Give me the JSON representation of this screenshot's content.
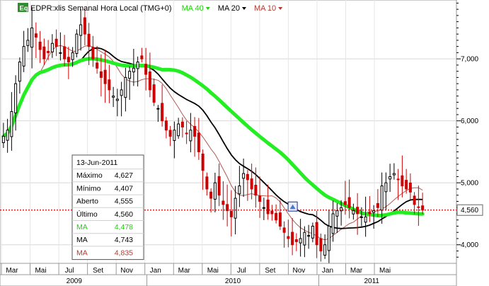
{
  "header": {
    "badge": "Eq",
    "title": "EDPR:xlis Semanal Hora Local (TMG+0)",
    "indicators": [
      {
        "label": "MA 40",
        "color": "#22d10f"
      },
      {
        "label": "MA 20",
        "color": "#000000"
      },
      {
        "label": "MA 10",
        "color": "#b03a2e"
      }
    ]
  },
  "colors": {
    "up": "#000000",
    "down": "#cc0000",
    "ma40": "#22ee22",
    "ma20": "#000000",
    "ma10": "#b05a52",
    "last_line": "#cc0000"
  },
  "info_box": {
    "date": "13-Jun-2011",
    "rows": [
      {
        "label": "Máximo",
        "value": "4,627",
        "color": "#000000"
      },
      {
        "label": "Mínimo",
        "value": "4,407",
        "color": "#000000"
      },
      {
        "label": "Aberto",
        "value": "4,555",
        "color": "#000000"
      },
      {
        "label": "Último",
        "value": "4,560",
        "color": "#000000"
      },
      {
        "label": "MA",
        "value": "4,478",
        "color": "#22d10f"
      },
      {
        "label": "MA",
        "value": "4,743",
        "color": "#000000"
      },
      {
        "label": "MA",
        "value": "4,835",
        "color": "#b03a2e"
      }
    ]
  },
  "chart_data": {
    "type": "candlestick",
    "title": "EDPR:xlis Semanal Hora Local (TMG+0)",
    "y_axis": {
      "min": 3.7,
      "max": 7.95,
      "ticks": [
        4.0,
        5.0,
        6.0,
        7.0
      ],
      "tick_labels": [
        "4,000",
        "5,000",
        "6,000",
        "7,000"
      ],
      "position": "right"
    },
    "last_value": 4.56,
    "last_value_label": "4,560",
    "x_axis": {
      "months": [
        "Mar",
        "Mai",
        "Jul",
        "Set",
        "Nov",
        "Jan",
        "Mar",
        "Mai",
        "Jul",
        "Set",
        "Nov",
        "Jan",
        "Mar",
        "Mai"
      ],
      "years": [
        {
          "label": "2009",
          "start_week": 0,
          "end_week": 44
        },
        {
          "label": "2010",
          "start_week": 44,
          "end_week": 96
        },
        {
          "label": "2011",
          "start_week": 96,
          "end_week": 128
        }
      ]
    },
    "close": [
      5.75,
      5.85,
      6.15,
      6.6,
      6.95,
      7.2,
      7.3,
      7.5,
      7.35,
      7.15,
      7.0,
      7.1,
      7.25,
      7.2,
      7.1,
      7.0,
      6.95,
      7.1,
      7.4,
      7.55,
      7.4,
      7.2,
      7.0,
      6.85,
      6.7,
      6.6,
      6.5,
      6.4,
      6.35,
      6.5,
      6.7,
      6.8,
      6.85,
      6.95,
      7.0,
      6.75,
      6.5,
      6.3,
      6.2,
      6.0,
      5.85,
      5.75,
      5.85,
      5.95,
      5.9,
      5.8,
      5.85,
      5.75,
      5.5,
      5.2,
      4.9,
      4.75,
      5.0,
      4.8,
      4.65,
      4.55,
      4.45,
      4.75,
      4.95,
      5.15,
      5.05,
      4.9,
      4.8,
      4.7,
      4.6,
      4.5,
      4.5,
      4.4,
      4.3,
      4.2,
      4.1,
      4.0,
      4.05,
      4.1,
      4.2,
      4.15,
      4.3,
      4.0,
      3.9,
      4.0,
      4.3,
      4.5,
      4.55,
      4.6,
      4.65,
      4.6,
      4.55,
      4.5,
      4.45,
      4.45,
      4.5,
      4.55,
      4.6,
      4.95,
      5.0,
      5.1,
      5.15,
      5.05,
      4.95,
      4.9,
      4.85,
      4.65,
      4.6,
      4.56
    ],
    "ma_series": [
      {
        "name": "MA 40",
        "last": 4.478
      },
      {
        "name": "MA 20",
        "last": 4.743
      },
      {
        "name": "MA 10",
        "last": 4.835
      }
    ]
  }
}
